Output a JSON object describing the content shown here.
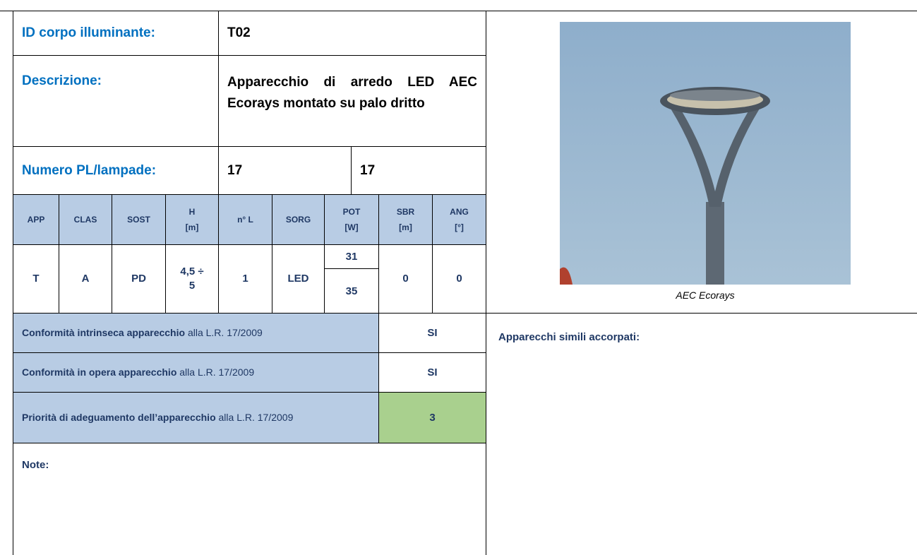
{
  "header": {
    "id_label": "ID corpo illuminante:",
    "id_value": "T02",
    "description_label": "Descrizione:",
    "description_value": "Apparecchio di arredo LED AEC Ecorays montato su palo dritto",
    "number_label": "Numero PL/lampade:",
    "number_values": [
      "17",
      "17"
    ]
  },
  "table": {
    "columns": [
      {
        "name": "APP"
      },
      {
        "name": "CLAS"
      },
      {
        "name": "SOST"
      },
      {
        "name": "H",
        "unit": "[m]"
      },
      {
        "name": "n° L"
      },
      {
        "name": "SORG"
      },
      {
        "name": "POT",
        "unit": "[W]"
      },
      {
        "name": "SBR",
        "unit": "[m]"
      },
      {
        "name": "ANG",
        "unit": "[°]"
      }
    ],
    "row": [
      "T",
      "A",
      "PD",
      "4,5 ÷ 5",
      "1",
      "LED",
      [
        "31",
        "35"
      ],
      "0",
      "0"
    ]
  },
  "conformity": [
    {
      "bold": "Conformità intrinseca apparecchio",
      "rest": " alla L.R. 17/2009",
      "value": "SI"
    },
    {
      "bold": "Conformità in opera apparecchio",
      "rest": " alla L.R. 17/2009",
      "value": "SI"
    },
    {
      "bold": "Priorità di adeguamento dell’apparecchio",
      "rest": " alla L.R. 17/2009",
      "value": "3"
    }
  ],
  "note_label": "Note:",
  "image_caption": "AEC Ecorays",
  "similar_label": "Apparecchi simili accorpati:"
}
